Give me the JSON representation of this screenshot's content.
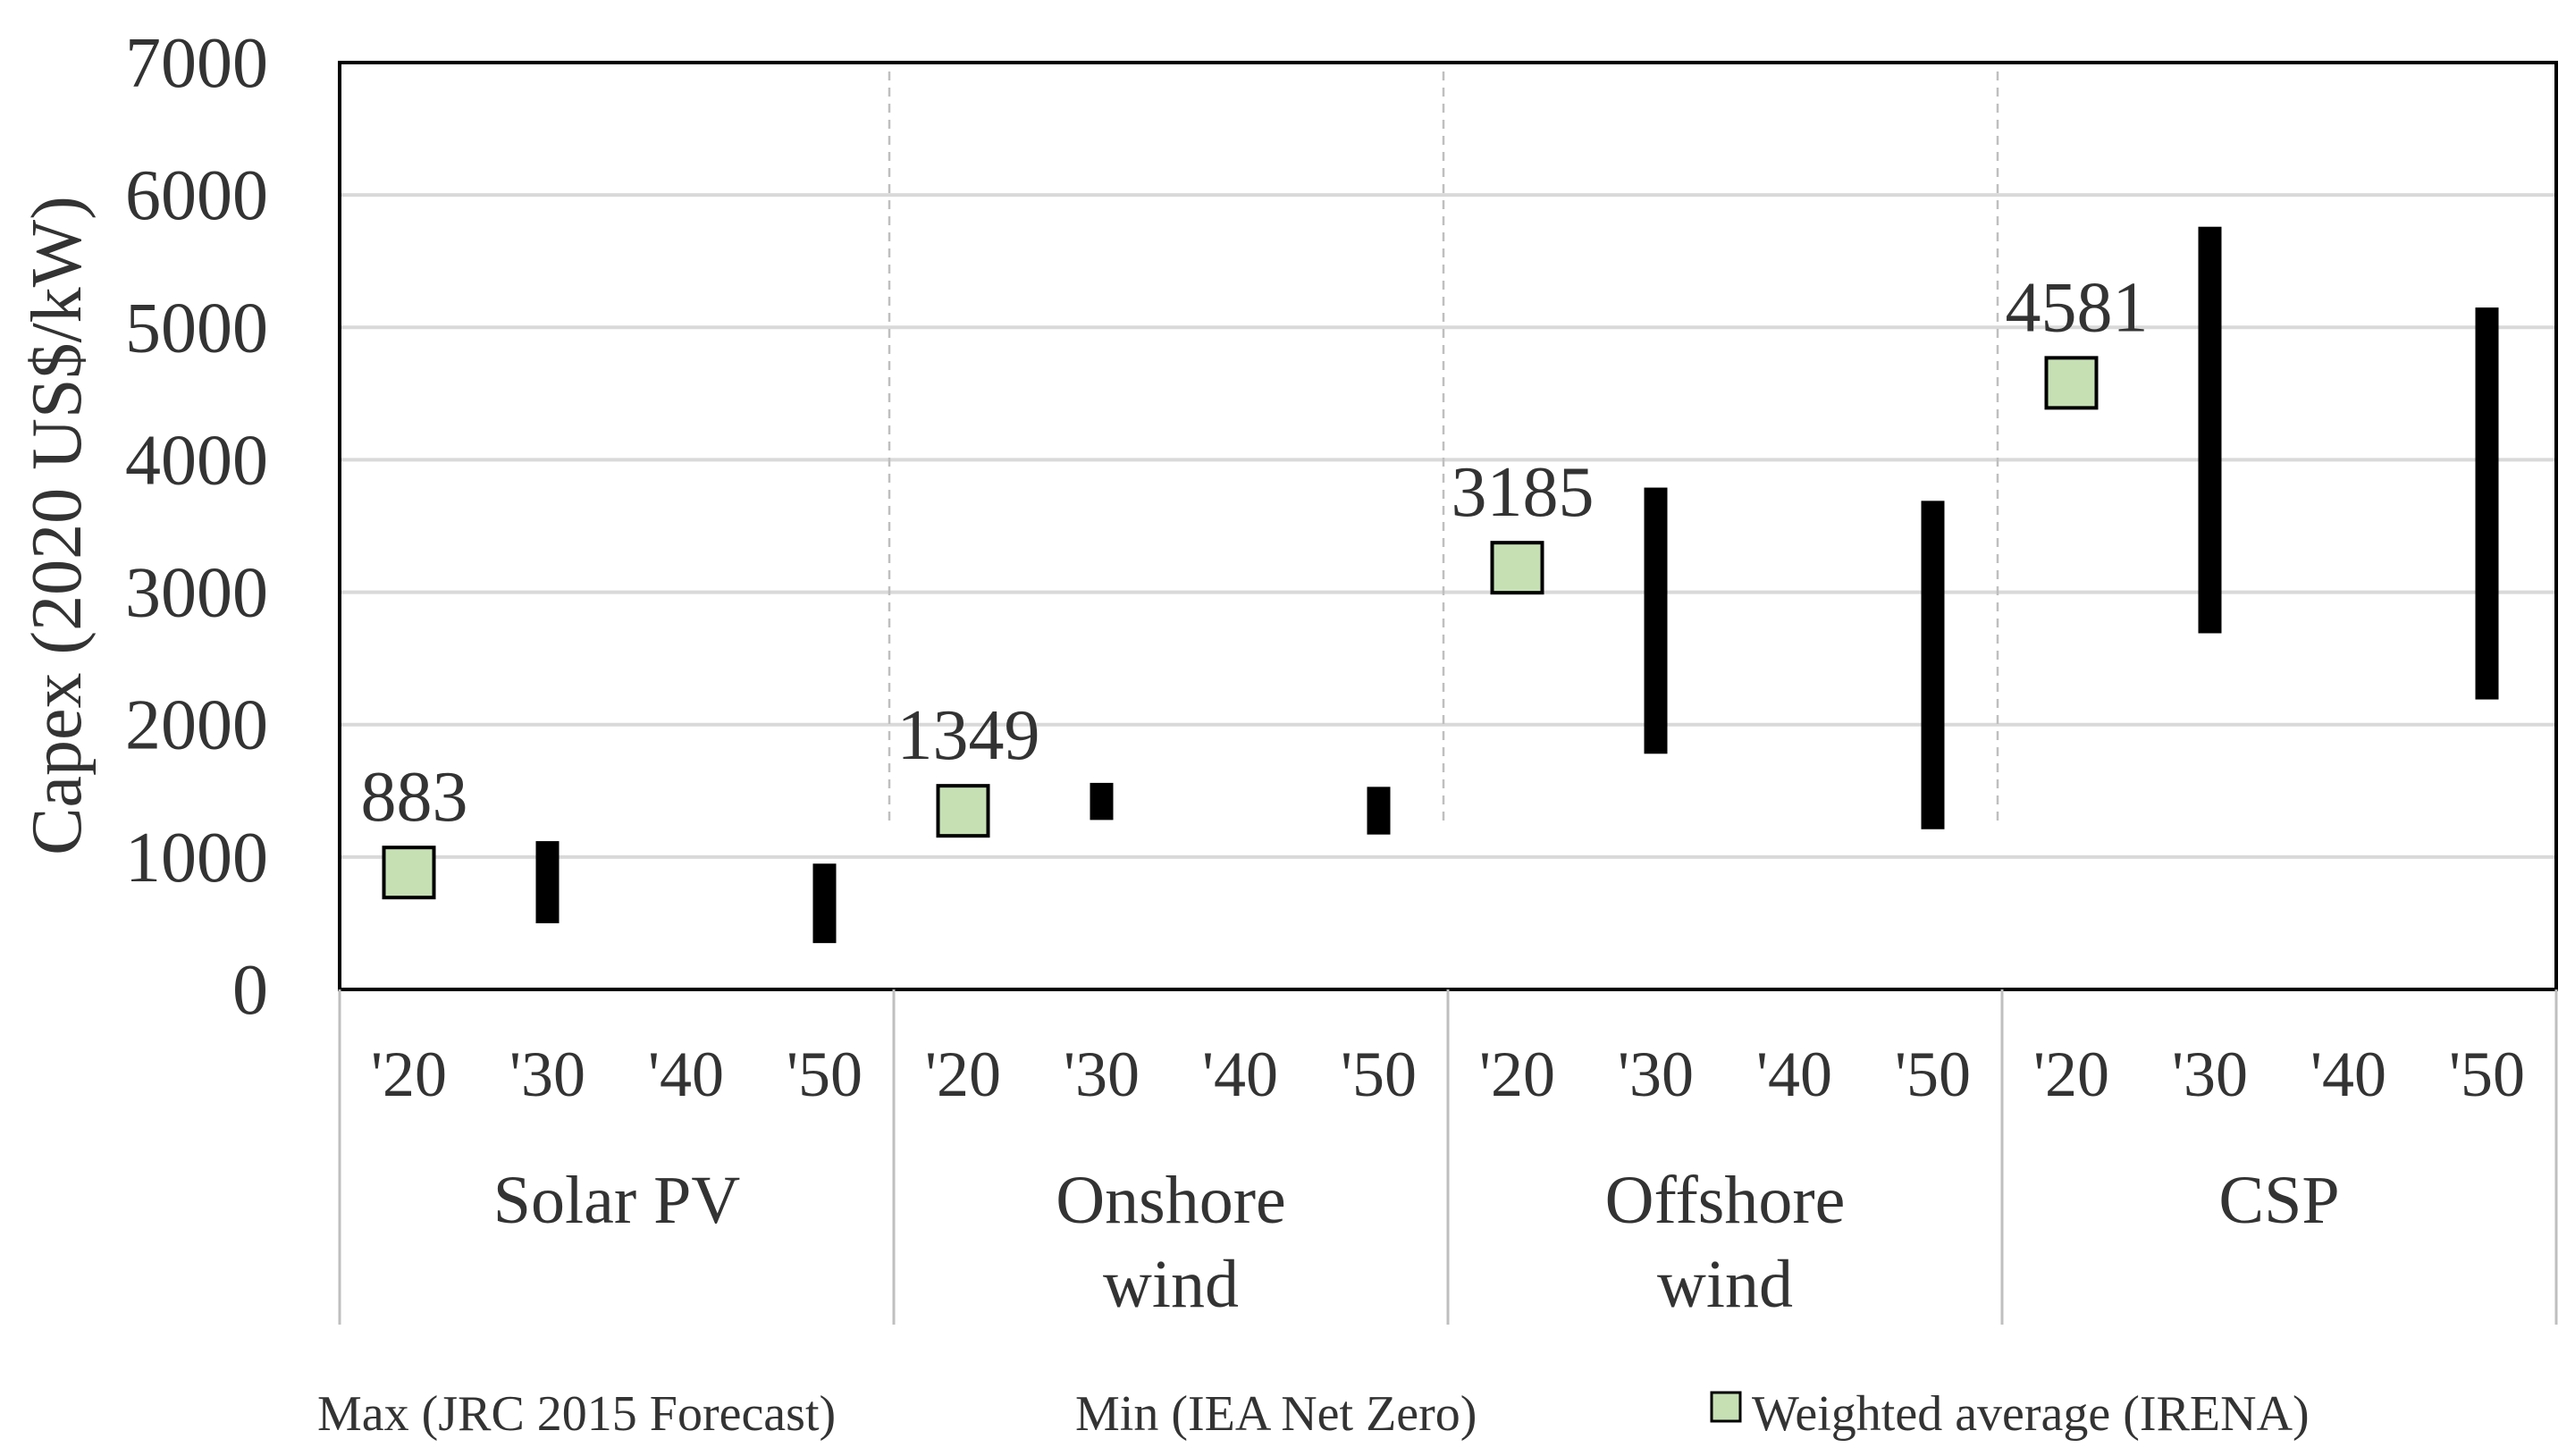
{
  "chart_data": {
    "type": "range-bar",
    "title": "",
    "ylabel": "Capex (2020 US$/kW)",
    "xlabel": "",
    "ylim": [
      0,
      7000
    ],
    "yticks": [
      0,
      1000,
      2000,
      3000,
      4000,
      5000,
      6000,
      7000
    ],
    "grid": true,
    "groups": [
      {
        "name": "Solar PV",
        "name_lines": [
          "Solar PV"
        ],
        "years": [
          "'20",
          "'30",
          "'40",
          "'50"
        ],
        "weighted_average": 883,
        "weighted_average_label": "883",
        "ranges": [
          {
            "year": "'30",
            "min": 500,
            "max": 1120
          },
          {
            "year": "'50",
            "min": 350,
            "max": 950
          }
        ]
      },
      {
        "name": "Onshore wind",
        "name_lines": [
          "Onshore",
          "wind"
        ],
        "years": [
          "'20",
          "'30",
          "'40",
          "'50"
        ],
        "weighted_average": 1349,
        "weighted_average_label": "1349",
        "ranges": [
          {
            "year": "'30",
            "min": 1280,
            "max": 1560
          },
          {
            "year": "'50",
            "min": 1170,
            "max": 1530
          }
        ]
      },
      {
        "name": "Offshore wind",
        "name_lines": [
          "Offshore",
          "wind"
        ],
        "years": [
          "'20",
          "'30",
          "'40",
          "'50"
        ],
        "weighted_average": 3185,
        "weighted_average_label": "3185",
        "ranges": [
          {
            "year": "'30",
            "min": 1780,
            "max": 3790
          },
          {
            "year": "'50",
            "min": 1210,
            "max": 3690
          }
        ]
      },
      {
        "name": "CSP",
        "name_lines": [
          "CSP"
        ],
        "years": [
          "'20",
          "'30",
          "'40",
          "'50"
        ],
        "weighted_average": 4581,
        "weighted_average_label": "4581",
        "ranges": [
          {
            "year": "'30",
            "min": 2690,
            "max": 5760
          },
          {
            "year": "'50",
            "min": 2190,
            "max": 5150
          }
        ]
      }
    ],
    "legend": {
      "placement": "bottom",
      "items": [
        {
          "label": "Max (JRC 2015 Forecast)",
          "marker": "none"
        },
        {
          "label": "Min (IEA Net Zero)",
          "marker": "none"
        },
        {
          "label": "Weighted average (IRENA)",
          "marker": "square"
        }
      ]
    },
    "colors": {
      "range_bar": "#000000",
      "marker_fill": "#c6e0b4",
      "marker_stroke": "#000000",
      "gridline": "#d9d9d9",
      "separator": "#bfbfbf",
      "axis": "#000000"
    }
  }
}
